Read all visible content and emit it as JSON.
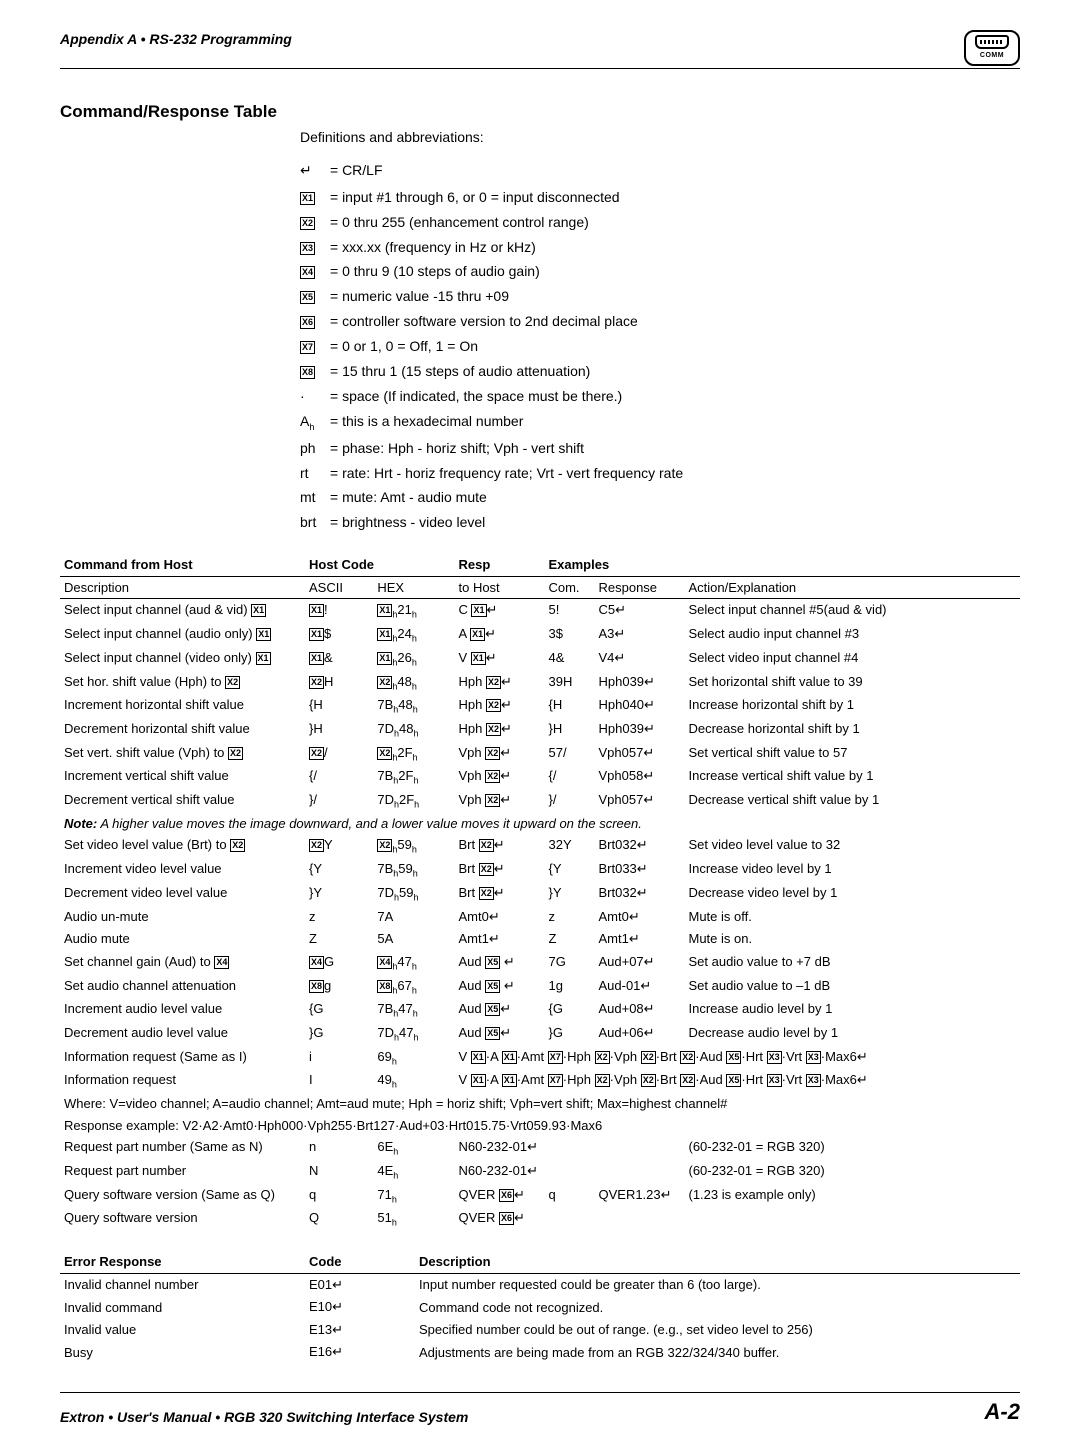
{
  "header": {
    "title": "Appendix A • RS-232 Programming",
    "icon_caption": "COMM"
  },
  "section_title": "Command/Response Table",
  "subheading": "Definitions and abbreviations:",
  "defs": [
    {
      "sym": "↵",
      "text": "= CR/LF"
    },
    {
      "sym": "X1",
      "text": "= input #1 through 6, or 0 = input disconnected",
      "boxed": true
    },
    {
      "sym": "X2",
      "text": "= 0 thru 255 (enhancement control range)",
      "boxed": true
    },
    {
      "sym": "X3",
      "text": "= xxx.xx (frequency in Hz or kHz)",
      "boxed": true
    },
    {
      "sym": "X4",
      "text": "= 0 thru 9 (10 steps of audio gain)",
      "boxed": true
    },
    {
      "sym": "X5",
      "text": "= numeric value -15 thru +09",
      "boxed": true
    },
    {
      "sym": "X6",
      "text": "= controller software version to 2nd decimal place",
      "boxed": true
    },
    {
      "sym": "X7",
      "text": "= 0 or 1, 0 = Off, 1 = On",
      "boxed": true
    },
    {
      "sym": "X8",
      "text": "= 15 thru 1 (15 steps of audio attenuation)",
      "boxed": true
    },
    {
      "sym": "·",
      "text": "= space (If indicated, the space must be there.)"
    },
    {
      "sym": "Aₕ",
      "text": "= this is a hexadecimal number"
    },
    {
      "sym": "ph",
      "text": "= phase: Hph - horiz shift; Vph - vert shift"
    },
    {
      "sym": "rt",
      "text": "= rate: Hrt - horiz frequency rate; Vrt - vert frequency rate"
    },
    {
      "sym": "mt",
      "text": "= mute: Amt - audio mute"
    },
    {
      "sym": "brt",
      "text": "= brightness - video level"
    }
  ],
  "table_headers": {
    "cmd": "Command from Host",
    "host_code": "Host Code",
    "resp": "Resp",
    "examples": "Examples",
    "desc": "Description",
    "ascii": "ASCII",
    "hex": "HEX",
    "to_host": "to Host",
    "com": "Com.",
    "response": "Response",
    "action": "Action/Explanation"
  },
  "rows": [
    [
      "Select input channel (aud & vid) X1",
      "X1!",
      "X1ₕ21ₕ",
      "C X1↵",
      "5!",
      "C5↵",
      "Select input channel #5(aud & vid)"
    ],
    [
      "Select input channel (audio only) X1",
      "X1$",
      "X1ₕ24ₕ",
      "A X1↵",
      "3$",
      "A3↵",
      "Select audio input channel #3"
    ],
    [
      "Select input channel (video only) X1",
      "X1&",
      "X1ₕ26ₕ",
      "V X1↵",
      "4&",
      "V4↵",
      "Select video input channel #4"
    ],
    [
      "Set hor. shift value (Hph) to X2",
      "X2H",
      "X2ₕ48ₕ",
      "Hph X2↵",
      "39H",
      "Hph039↵",
      "Set horizontal shift value to 39"
    ],
    [
      "Increment horizontal shift value",
      "{H",
      "7Bₕ48ₕ",
      "Hph X2↵",
      "{H",
      "Hph040↵",
      "Increase horizontal shift by 1"
    ],
    [
      "Decrement horizontal shift value",
      "}H",
      "7Dₕ48ₕ",
      "Hph X2↵",
      "}H",
      "Hph039↵",
      "Decrease horizontal shift by 1"
    ],
    [
      "Set vert. shift value (Vph) to X2",
      "X2/",
      "X2ₕ2Fₕ",
      "Vph X2↵",
      "57/",
      "Vph057↵",
      "Set vertical shift value to 57"
    ],
    [
      "Increment vertical shift value",
      "{/",
      "7Bₕ2Fₕ",
      "Vph X2↵",
      "{/",
      "Vph058↵",
      "Increase vertical shift value by 1"
    ],
    [
      "Decrement vertical shift value",
      "}/",
      "7Dₕ2Fₕ",
      "Vph X2↵",
      "}/",
      "Vph057↵",
      "Decrease vertical shift value by 1"
    ]
  ],
  "note_row": "Note: A higher value moves the image downward, and a lower value moves it upward on the screen.",
  "rows2": [
    [
      "Set video level value (Brt) to X2",
      "X2Y",
      "X2ₕ59ₕ",
      "Brt X2↵",
      "32Y",
      "Brt032↵",
      "Set video level value to 32"
    ],
    [
      "Increment video level value",
      "{Y",
      "7Bₕ59ₕ",
      "Brt X2↵",
      "{Y",
      "Brt033↵",
      "Increase video level by 1"
    ],
    [
      "Decrement video level value",
      "}Y",
      "7Dₕ59ₕ",
      "Brt X2↵",
      "}Y",
      "Brt032↵",
      "Decrease video level by 1"
    ],
    [
      "Audio un-mute",
      "z",
      "7A",
      "Amt0↵",
      "z",
      "Amt0↵",
      "Mute is off."
    ],
    [
      "Audio mute",
      "Z",
      "5A",
      "Amt1↵",
      "Z",
      "Amt1↵",
      "Mute is on."
    ],
    [
      "Set channel gain (Aud) to X4",
      "X4G",
      "X4ₕ47ₕ",
      "Aud X5 ↵",
      "7G",
      "Aud+07↵",
      "Set audio value to +7 dB"
    ],
    [
      "Set audio channel attenuation",
      "X8g",
      "X8ₕ67ₕ",
      "Aud X5 ↵",
      "1g",
      "Aud-01↵",
      "Set audio value to –1 dB"
    ],
    [
      "Increment audio level value",
      "{G",
      "7Bₕ47ₕ",
      "Aud X5↵",
      "{G",
      "Aud+08↵",
      "Increase audio level by 1"
    ],
    [
      "Decrement audio level value",
      "}G",
      "7Dₕ47ₕ",
      "Aud X5↵",
      "}G",
      "Aud+06↵",
      "Decrease audio level by 1"
    ]
  ],
  "info1": {
    "desc": "Information request (Same as I)",
    "ascii": "i",
    "hex": "69ₕ",
    "resp": "V X1·A X1·Amt X7·Hph X2·Vph X2·Brt X2·Aud X5·Hrt X3·Vrt X3·Max6↵"
  },
  "info2": {
    "desc": "Information request",
    "ascii": "I",
    "hex": "49ₕ",
    "resp": "V X1·A X1·Amt X7·Hph X2·Vph X2·Brt X2·Aud X5·Hrt X3·Vrt X3·Max6↵"
  },
  "where": "Where: V=video channel; A=audio channel; Amt=aud mute; Hph = horiz shift; Vph=vert shift; Max=highest channel#",
  "resp_example": "Response example: V2·A2·Amt0·Hph000·Vph255·Brt127·Aud+03·Hrt015.75·Vrt059.93·Max6",
  "rows3": [
    [
      "Request part number (Same as N)",
      "n",
      "6Eₕ",
      "N60-232-01↵",
      "",
      "",
      "(60-232-01 = RGB 320)"
    ],
    [
      "Request part number",
      "N",
      "4Eₕ",
      "N60-232-01↵",
      "",
      "",
      "(60-232-01 = RGB 320)"
    ],
    [
      "Query software version (Same as Q)",
      "q",
      "71ₕ",
      "QVER X6↵",
      "q",
      "QVER1.23↵",
      "(1.23 is example only)"
    ],
    [
      "Query software version",
      "Q",
      "51ₕ",
      "QVER X6↵",
      "",
      "",
      ""
    ]
  ],
  "err_headers": {
    "er": "Error Response",
    "code": "Code",
    "desc": "Description"
  },
  "err_rows": [
    [
      "Invalid channel number",
      "E01↵",
      "Input number requested could be greater than 6 (too large)."
    ],
    [
      "Invalid command",
      "E10↵",
      "Command code not recognized."
    ],
    [
      "Invalid value",
      "E13↵",
      "Specified number could be out of range. (e.g., set video level to 256)"
    ],
    [
      "Busy",
      "E16↵",
      "Adjustments are being made from an RGB 322/324/340 buffer."
    ]
  ],
  "footer": {
    "left": "Extron • User's Manual  • RGB 320 Switching Interface System",
    "right": "A-2"
  }
}
